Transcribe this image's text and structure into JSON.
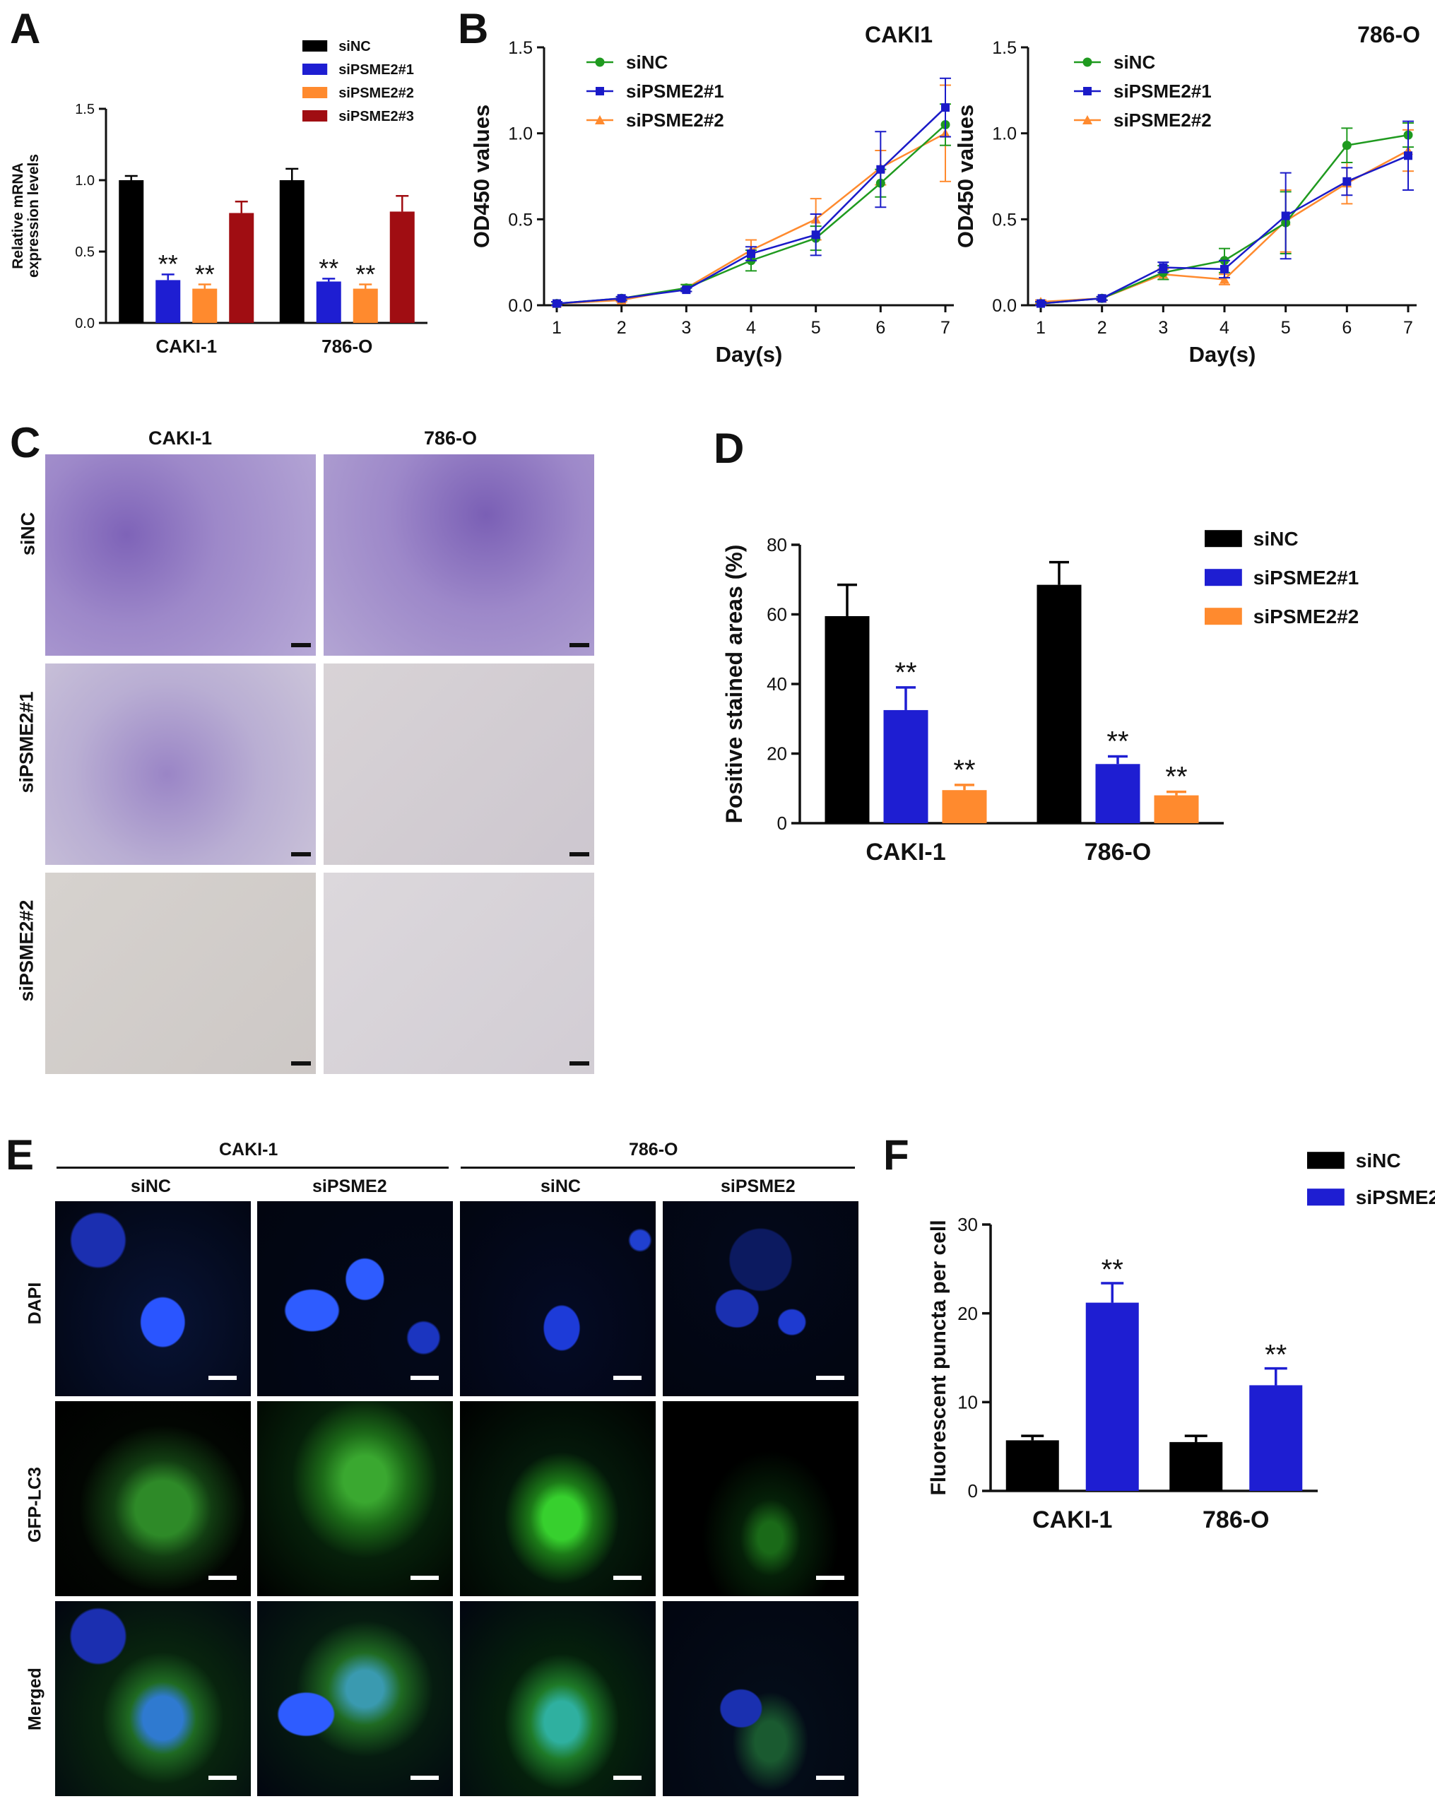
{
  "panels": {
    "A": {
      "letter": "A",
      "ylabel_line1": "Relative mRNA",
      "ylabel_line2": "expression levels",
      "yticks": [
        "0.0",
        "0.5",
        "1.0",
        "1.5"
      ],
      "legend": [
        "siNC",
        "siPSME2#1",
        "siPSME2#2",
        "siPSME2#3"
      ],
      "colors": [
        "#000000",
        "#1e1ed2",
        "#ff8a2e",
        "#a00d12"
      ]
    },
    "B": {
      "letter": "B",
      "colors": [
        "#1f9a1f",
        "#1a1ac8",
        "#ff8a2e"
      ],
      "legend": [
        "siNC",
        "siPSME2#1",
        "siPSME2#2"
      ],
      "ylabel": "OD450 values",
      "xlabel": "Day(s)",
      "yticks": [
        "0.0",
        "0.5",
        "1.0",
        "1.5"
      ],
      "xticks": [
        "1",
        "2",
        "3",
        "4",
        "5",
        "6",
        "7"
      ]
    },
    "C": {
      "letter": "C",
      "col_labels": [
        "CAKI-1",
        "786-O"
      ],
      "row_labels": [
        "siNC",
        "siPSME2#1",
        "siPSME2#2"
      ]
    },
    "D": {
      "letter": "D",
      "ylabel": "Positive stained areas (%)",
      "yticks": [
        "0",
        "20",
        "40",
        "60",
        "80"
      ],
      "legend": [
        "siNC",
        "siPSME2#1",
        "siPSME2#2"
      ],
      "colors": [
        "#000000",
        "#1e1ed2",
        "#ff8a2e"
      ]
    },
    "E": {
      "letter": "E",
      "group_labels": [
        "CAKI-1",
        "786-O"
      ],
      "col_labels": [
        "siNC",
        "siPSME2",
        "siNC",
        "siPSME2"
      ],
      "row_labels": [
        "DAPI",
        "GFP-LC3",
        "Merged"
      ]
    },
    "F": {
      "letter": "F",
      "ylabel": "Fluorescent puncta per cell",
      "yticks": [
        "0",
        "10",
        "20",
        "30"
      ],
      "legend": [
        "siNC",
        "siPSME2"
      ],
      "colors": [
        "#000000",
        "#1e1ed2"
      ]
    }
  },
  "chart_data": [
    {
      "panel": "A",
      "type": "bar",
      "categories": [
        "CAKI-1",
        "786-O"
      ],
      "ylim": [
        0,
        1.5
      ],
      "series": [
        {
          "name": "siNC",
          "values": [
            1.0,
            1.0
          ],
          "errors": [
            0.03,
            0.08
          ]
        },
        {
          "name": "siPSME2#1",
          "values": [
            0.3,
            0.29
          ],
          "errors": [
            0.04,
            0.02
          ]
        },
        {
          "name": "siPSME2#2",
          "values": [
            0.24,
            0.24
          ],
          "errors": [
            0.03,
            0.03
          ]
        },
        {
          "name": "siPSME2#3",
          "values": [
            0.77,
            0.78
          ],
          "errors": [
            0.08,
            0.11
          ]
        }
      ],
      "annotations": [
        {
          "series": 1,
          "category": 0,
          "text": "**"
        },
        {
          "series": 2,
          "category": 0,
          "text": "**"
        },
        {
          "series": 1,
          "category": 1,
          "text": "**"
        },
        {
          "series": 2,
          "category": 1,
          "text": "**"
        }
      ]
    },
    {
      "panel": "B",
      "type": "line",
      "title": "CAKI1",
      "x": [
        1,
        2,
        3,
        4,
        5,
        6,
        7
      ],
      "ylim": [
        0,
        1.5
      ],
      "series": [
        {
          "name": "siNC",
          "values": [
            0.01,
            0.04,
            0.1,
            0.26,
            0.39,
            0.71,
            1.05
          ],
          "errors": [
            0.01,
            0.01,
            0.02,
            0.06,
            0.07,
            0.08,
            0.12
          ]
        },
        {
          "name": "siPSME2#1",
          "values": [
            0.01,
            0.04,
            0.09,
            0.3,
            0.41,
            0.79,
            1.15
          ],
          "errors": [
            0.01,
            0.01,
            0.01,
            0.04,
            0.12,
            0.22,
            0.17
          ]
        },
        {
          "name": "siPSME2#2",
          "values": [
            0.01,
            0.03,
            0.1,
            0.32,
            0.5,
            0.8,
            1.0
          ],
          "errors": [
            0.01,
            0.01,
            0.02,
            0.06,
            0.12,
            0.1,
            0.28
          ]
        }
      ]
    },
    {
      "panel": "B",
      "type": "line",
      "title": "786-O",
      "x": [
        1,
        2,
        3,
        4,
        5,
        6,
        7
      ],
      "ylim": [
        0,
        1.5
      ],
      "series": [
        {
          "name": "siNC",
          "values": [
            0.01,
            0.04,
            0.19,
            0.26,
            0.48,
            0.93,
            0.99
          ],
          "errors": [
            0.01,
            0.01,
            0.04,
            0.07,
            0.18,
            0.1,
            0.07
          ]
        },
        {
          "name": "siPSME2#1",
          "values": [
            0.01,
            0.04,
            0.22,
            0.21,
            0.52,
            0.72,
            0.87
          ],
          "errors": [
            0.01,
            0.01,
            0.03,
            0.05,
            0.25,
            0.08,
            0.2
          ]
        },
        {
          "name": "siPSME2#2",
          "values": [
            0.02,
            0.04,
            0.18,
            0.15,
            0.49,
            0.71,
            0.9
          ],
          "errors": [
            0.01,
            0.01,
            0.03,
            0.03,
            0.18,
            0.12,
            0.12
          ]
        }
      ]
    },
    {
      "panel": "D",
      "type": "bar",
      "categories": [
        "CAKI-1",
        "786-O"
      ],
      "ylim": [
        0,
        80
      ],
      "series": [
        {
          "name": "siNC",
          "values": [
            59.5,
            68.5
          ],
          "errors": [
            9.0,
            6.5
          ]
        },
        {
          "name": "siPSME2#1",
          "values": [
            32.5,
            17.0
          ],
          "errors": [
            6.5,
            2.2
          ]
        },
        {
          "name": "siPSME2#2",
          "values": [
            9.5,
            8.0
          ],
          "errors": [
            1.5,
            1.0
          ]
        }
      ],
      "annotations": [
        {
          "series": 1,
          "category": 0,
          "text": "**"
        },
        {
          "series": 2,
          "category": 0,
          "text": "**"
        },
        {
          "series": 1,
          "category": 1,
          "text": "**"
        },
        {
          "series": 2,
          "category": 1,
          "text": "**"
        }
      ]
    },
    {
      "panel": "F",
      "type": "bar",
      "categories": [
        "CAKI-1",
        "786-O"
      ],
      "ylim": [
        0,
        30
      ],
      "series": [
        {
          "name": "siNC",
          "values": [
            5.7,
            5.5
          ],
          "errors": [
            0.5,
            0.7
          ]
        },
        {
          "name": "siPSME2",
          "values": [
            21.2,
            11.9
          ],
          "errors": [
            2.2,
            1.9
          ]
        }
      ],
      "annotations": [
        {
          "series": 1,
          "category": 0,
          "text": "**"
        },
        {
          "series": 1,
          "category": 1,
          "text": "**"
        }
      ]
    }
  ]
}
